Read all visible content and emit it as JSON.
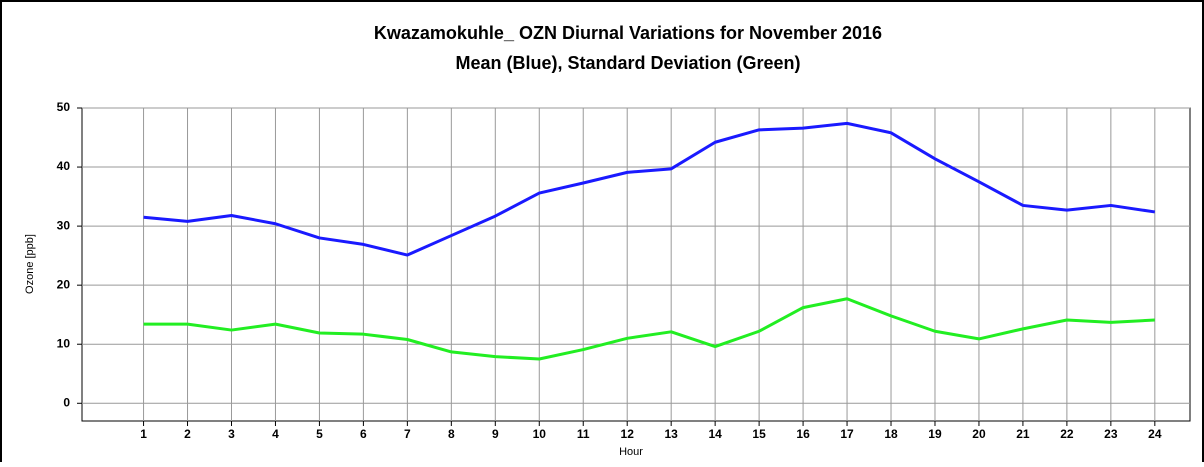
{
  "chart_data": {
    "type": "line",
    "title": "Kwazamokuhle_ OZN Diurnal Variations for November 2016",
    "subtitle": "Mean (Blue), Standard Deviation (Green)",
    "x_label": "Hour",
    "y_label": "Ozone [ppb]",
    "x": [
      1,
      2,
      3,
      4,
      5,
      6,
      7,
      8,
      9,
      10,
      11,
      12,
      13,
      14,
      15,
      16,
      17,
      18,
      19,
      20,
      21,
      22,
      23,
      24
    ],
    "series": [
      {
        "color": "#1a1aff",
        "values": [
          31.5,
          30.8,
          31.8,
          30.4,
          28,
          26.9,
          25.1,
          28.4,
          31.7,
          35.6,
          37.3,
          39.1,
          39.7,
          44.2,
          46.3,
          46.6,
          47.4,
          45.8,
          41.4,
          37.5,
          33.5,
          32.7,
          33.5,
          32.4
        ]
      },
      {
        "color": "#22ee22",
        "values": [
          13.4,
          13.4,
          12.4,
          13.4,
          11.9,
          11.7,
          10.8,
          8.7,
          7.9,
          7.5,
          9.1,
          11,
          12.1,
          9.6,
          12.2,
          16.2,
          17.7,
          14.8,
          12.2,
          10.9,
          12.6,
          14.1,
          13.7,
          14.1
        ]
      }
    ],
    "xlim": [
      -0.4,
      24.8
    ],
    "xticks": [
      1,
      2,
      3,
      4,
      5,
      6,
      7,
      8,
      9,
      10,
      11,
      12,
      13,
      14,
      15,
      16,
      17,
      18,
      19,
      20,
      21,
      22,
      23,
      24
    ],
    "ylim": [
      -3,
      50
    ],
    "yticks": [
      0,
      10,
      20,
      30,
      40,
      50
    ],
    "grid": true
  }
}
